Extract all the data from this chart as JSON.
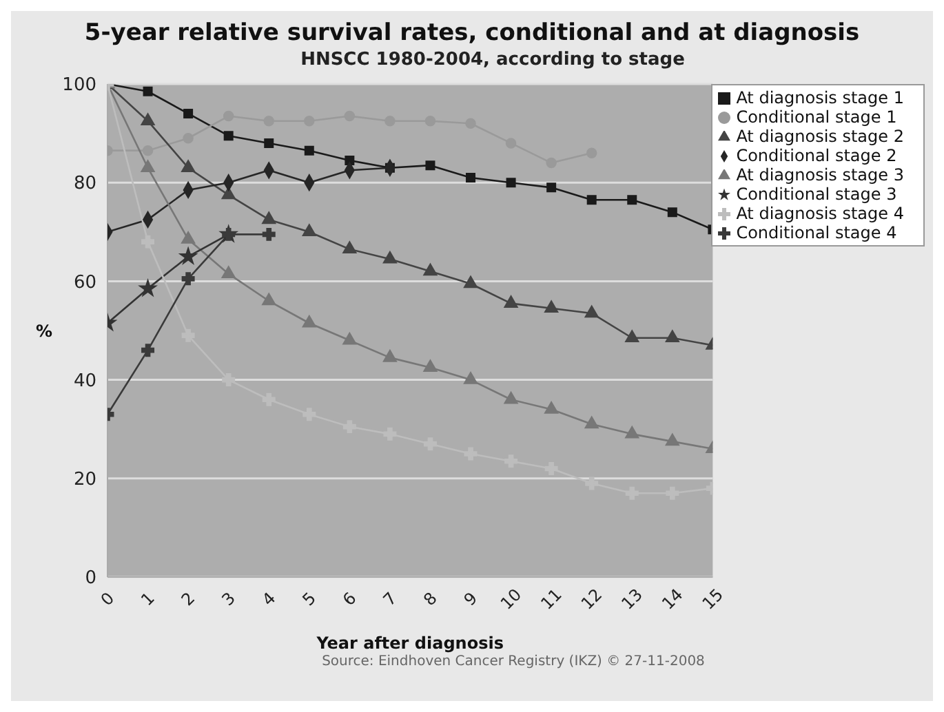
{
  "chart_data": {
    "type": "line",
    "title": "5-year relative survival rates, conditional and at diagnosis",
    "subtitle": "HNSCC 1980-2004, according to stage",
    "xlabel": "Year after diagnosis",
    "ylabel": "%",
    "annotations": [
      "Source: Eindhoven Cancer Registry (IKZ) © 27-11-2008"
    ],
    "x": [
      0,
      1,
      2,
      3,
      4,
      5,
      6,
      7,
      8,
      9,
      10,
      11,
      12,
      13,
      14,
      15
    ],
    "xlim": [
      0,
      15
    ],
    "xticks": [
      0,
      1,
      2,
      3,
      4,
      5,
      6,
      7,
      8,
      9,
      10,
      11,
      12,
      13,
      14,
      15
    ],
    "ylim": [
      0,
      100
    ],
    "yticks": [
      0,
      20,
      40,
      60,
      80,
      100
    ],
    "grid": "y",
    "legend": "top right",
    "line_style": "solid",
    "series": [
      {
        "name": "At diagnosis stage 1",
        "color": "#1a1a1a",
        "marker": "square",
        "values": [
          100,
          98.5,
          94,
          89.5,
          88,
          86.5,
          84.5,
          83,
          83.5,
          81,
          80,
          79,
          76.5,
          76.5,
          74,
          70.5
        ]
      },
      {
        "name": "Conditional stage 1",
        "color": "#9a9a9a",
        "marker": "circle",
        "values": [
          86.5,
          86.5,
          89,
          93.5,
          92.5,
          92.5,
          93.5,
          92.5,
          92.5,
          92,
          88,
          84,
          86,
          null,
          null,
          null
        ]
      },
      {
        "name": "At diagnosis stage 2",
        "color": "#444444",
        "marker": "triangle",
        "values": [
          100,
          92.5,
          83,
          77.5,
          72.5,
          70,
          66.5,
          64.5,
          62,
          59.5,
          55.5,
          54.5,
          53.5,
          48.5,
          48.5,
          47
        ]
      },
      {
        "name": "Conditional stage 2",
        "color": "#262626",
        "marker": "diamond",
        "values": [
          70,
          72.5,
          78.5,
          80,
          82.5,
          80,
          82.5,
          83,
          null,
          null,
          null,
          null,
          null,
          null,
          null,
          null
        ]
      },
      {
        "name": "At diagnosis stage 3",
        "color": "#777777",
        "marker": "triangle",
        "values": [
          100,
          83,
          68.5,
          61.5,
          56,
          51.5,
          48,
          44.5,
          42.5,
          40,
          36,
          34,
          31,
          29,
          27.5,
          26
        ]
      },
      {
        "name": "Conditional stage 3",
        "color": "#333333",
        "marker": "star",
        "values": [
          51.5,
          58.5,
          65,
          69.5,
          null,
          null,
          null,
          null,
          null,
          null,
          null,
          null,
          null,
          null,
          null,
          null
        ]
      },
      {
        "name": "At diagnosis stage 4",
        "color": "#bdbdbd",
        "marker": "cross",
        "values": [
          100,
          68,
          49,
          40,
          36,
          33,
          30.5,
          29,
          27,
          25,
          23.5,
          22,
          19,
          17,
          17,
          18
        ]
      },
      {
        "name": "Conditional stage 4",
        "color": "#3a3a3a",
        "marker": "cross",
        "values": [
          33,
          46,
          60.5,
          69.5,
          69.5,
          null,
          null,
          null,
          null,
          null,
          null,
          null,
          null,
          null,
          null,
          null
        ]
      }
    ]
  }
}
